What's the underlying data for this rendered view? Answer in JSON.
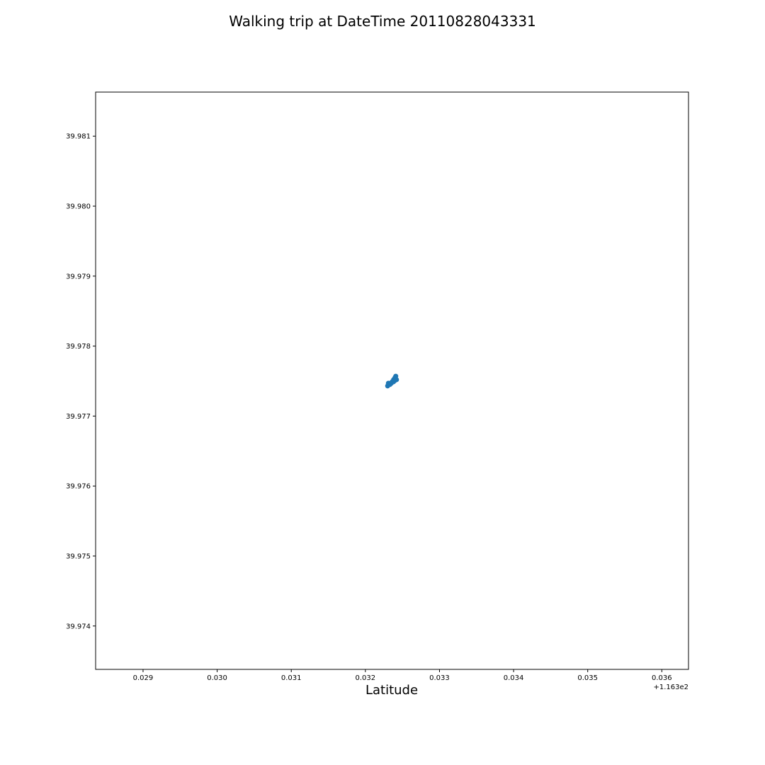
{
  "chart_data": {
    "type": "scatter",
    "title": "Walking trip at DateTime 20110828043331",
    "xlabel": "Latitude",
    "ylabel": "",
    "x_offset_label": "+1.163e2",
    "x_tick_labels": [
      "0.029",
      "0.030",
      "0.031",
      "0.032",
      "0.033",
      "0.034",
      "0.035",
      "0.036"
    ],
    "y_tick_labels": [
      "39.974",
      "39.975",
      "39.976",
      "39.977",
      "39.978",
      "39.979",
      "39.980",
      "39.981"
    ],
    "x_ticks": [
      116.329,
      116.33,
      116.331,
      116.332,
      116.333,
      116.334,
      116.335,
      116.336
    ],
    "y_ticks": [
      39.974,
      39.975,
      39.976,
      39.977,
      39.978,
      39.979,
      39.98,
      39.981
    ],
    "xlim": [
      116.32836,
      116.33636
    ],
    "ylim": [
      39.97338,
      39.98163
    ],
    "grid": false,
    "marker_color": "#1f77b4",
    "series": [
      {
        "x": [
          116.3323,
          116.33231,
          116.33232,
          116.33234,
          116.33236,
          116.33238,
          116.3324,
          116.33241,
          116.33242,
          116.3324,
          116.33238,
          116.33235,
          116.33233,
          116.33231
        ],
        "y": [
          39.97743,
          39.97747,
          39.97746,
          39.97746,
          39.97749,
          39.97752,
          39.97755,
          39.97757,
          39.97752,
          39.97751,
          39.97749,
          39.97747,
          39.97745,
          39.97745
        ]
      }
    ]
  }
}
